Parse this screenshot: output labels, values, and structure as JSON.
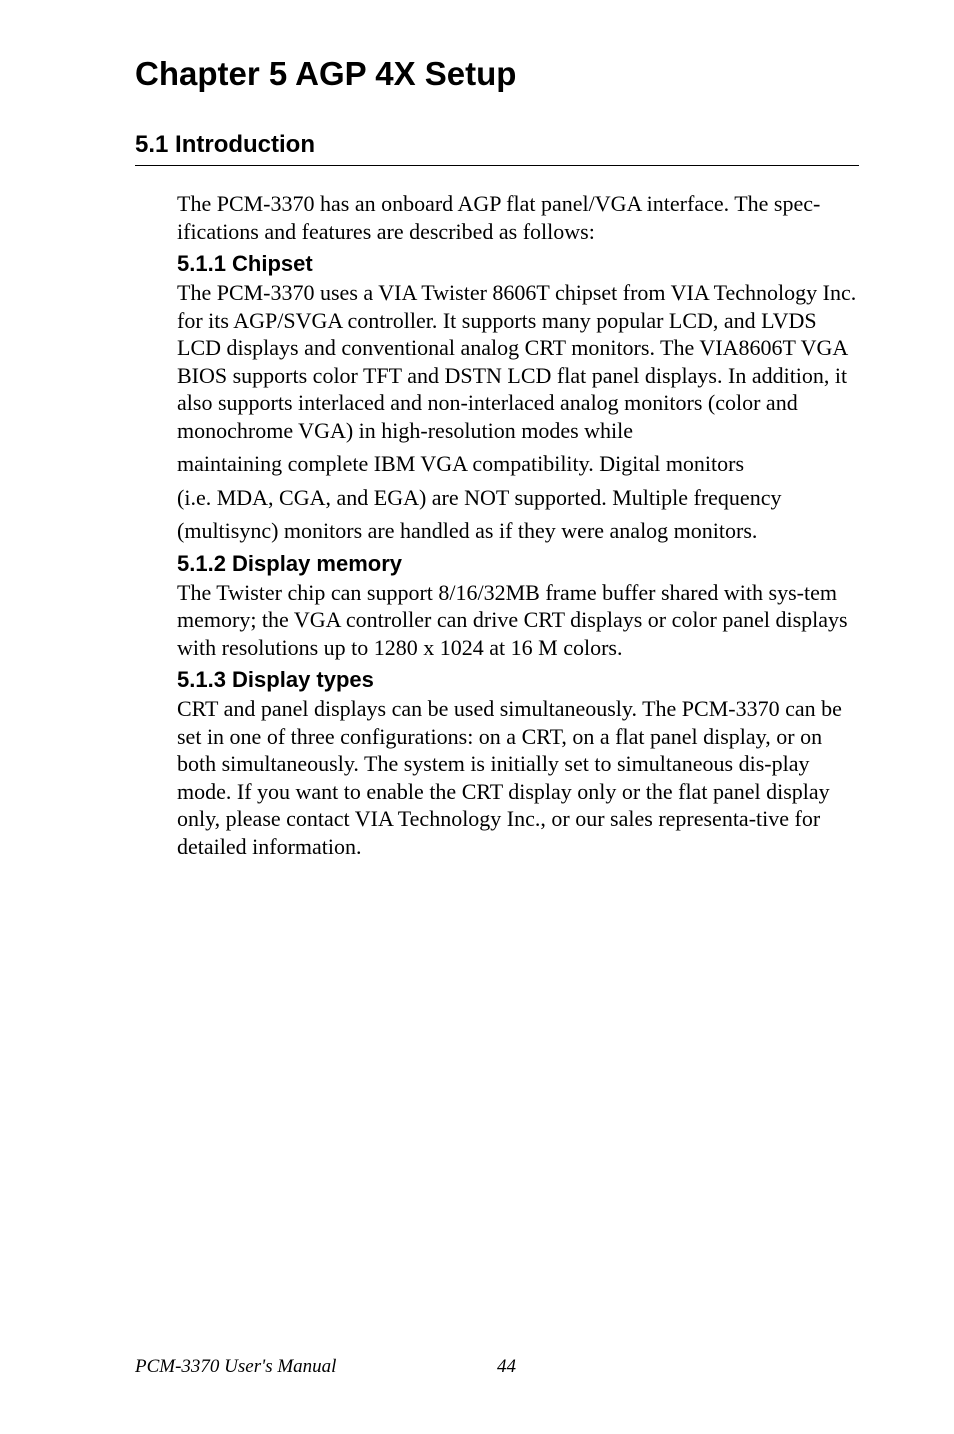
{
  "chapter": {
    "title": "Chapter 5  AGP 4X Setup"
  },
  "section": {
    "heading": "5.1  Introduction",
    "intro_para": "The PCM-3370 has an onboard AGP flat panel/VGA interface. The spec-ifications and features are described as follows:"
  },
  "subsections": {
    "chipset": {
      "heading": "5.1.1 Chipset",
      "para1": "The PCM-3370 uses a VIA Twister 8606T chipset from VIA Technology Inc. for its AGP/SVGA controller. It supports many popular LCD, and LVDS LCD displays and conventional analog CRT monitors. The VIA8606T VGA BIOS supports color TFT and DSTN LCD flat panel displays. In addition, it also supports interlaced and non-interlaced analog monitors (color and monochrome VGA) in high-resolution modes while",
      "para2": "maintaining complete IBM VGA compatibility. Digital monitors",
      "para3": "(i.e. MDA, CGA, and EGA) are NOT supported. Multiple frequency",
      "para4": "(multisync) monitors are handled as if they were analog monitors."
    },
    "display_memory": {
      "heading": "5.1.2 Display memory",
      "para": "The Twister chip can support  8/16/32MB frame buffer shared with sys-tem memory; the VGA controller can drive CRT displays or color panel displays with resolutions up to 1280 x 1024 at 16 M colors."
    },
    "display_types": {
      "heading": "5.1.3 Display types",
      "para": "CRT and panel displays can be used simultaneously. The PCM-3370 can be set in one of three configurations: on a CRT, on a flat panel display, or on both simultaneously. The system is initially set to simultaneous dis-play mode. If you want to enable the CRT display only or the flat panel display only, please contact VIA Technology Inc., or our sales representa-tive for detailed information."
    }
  },
  "footer": {
    "manual_title": "PCM-3370 User's Manual",
    "page_number": "44"
  },
  "styles": {
    "background_color": "#ffffff",
    "text_color": "#000000",
    "body_font": "Times New Roman",
    "heading_font": "Arial",
    "chapter_fontsize": 33,
    "section_fontsize": 24,
    "subhead_fontsize": 22,
    "body_fontsize": 22,
    "footer_fontsize": 19
  }
}
